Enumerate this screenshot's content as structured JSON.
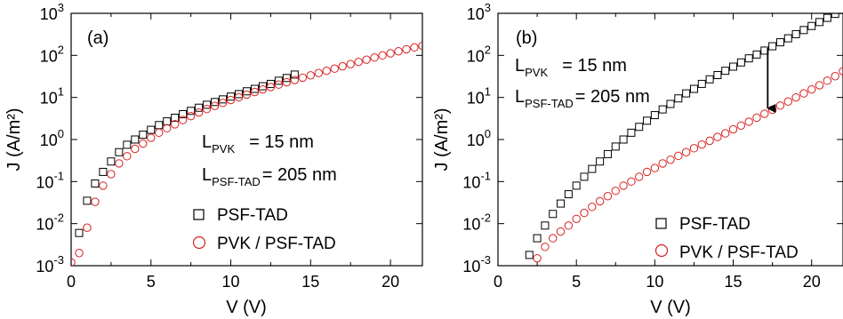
{
  "chart_data": [
    {
      "type": "scatter",
      "panel_label": "(a)",
      "xlabel": "V (V)",
      "ylabel": "J (A/m²)",
      "xlim": [
        0,
        22
      ],
      "ylim": [
        0.001,
        1000
      ],
      "y_scale": "log",
      "x_ticks": [
        "0",
        "5",
        "10",
        "15",
        "20"
      ],
      "y_ticks": [
        {
          "base": "10",
          "exp": "-3"
        },
        {
          "base": "10",
          "exp": "-2"
        },
        {
          "base": "10",
          "exp": "-1"
        },
        {
          "base": "10",
          "exp": "0"
        },
        {
          "base": "10",
          "exp": "1"
        },
        {
          "base": "10",
          "exp": "2"
        },
        {
          "base": "10",
          "exp": "3"
        }
      ],
      "grid": false,
      "legend_position": "lower-right",
      "annotations": [
        {
          "main": "L",
          "sub": "PVK",
          "rest": "= 15   nm"
        },
        {
          "main": "L",
          "sub": "PSF-TAD",
          "rest": "= 205 nm"
        }
      ],
      "series": [
        {
          "name": "PSF-TAD",
          "marker": "square",
          "color": "#000000",
          "x": [
            0.5,
            1.0,
            1.5,
            2.0,
            2.5,
            3.0,
            3.5,
            4.0,
            4.5,
            5.0,
            5.5,
            6.0,
            6.5,
            7.0,
            7.5,
            8.0,
            8.5,
            9.0,
            9.5,
            10.0,
            10.5,
            11.0,
            11.5,
            12.0,
            12.5,
            13.0,
            13.5,
            14.0
          ],
          "y": [
            0.006,
            0.035,
            0.09,
            0.17,
            0.3,
            0.5,
            0.75,
            1.0,
            1.3,
            1.7,
            2.2,
            2.7,
            3.3,
            4.0,
            4.8,
            5.7,
            6.7,
            7.8,
            9.0,
            10.5,
            12.0,
            14.0,
            16.0,
            18.5,
            21.0,
            25.0,
            29.0,
            35.0
          ]
        },
        {
          "name": "PVK / PSF-TAD",
          "marker": "circle",
          "color": "#d62020",
          "x": [
            0.0,
            0.5,
            1.0,
            1.5,
            2.0,
            2.5,
            3.0,
            3.5,
            4.0,
            4.5,
            5.0,
            5.5,
            6.0,
            6.5,
            7.0,
            7.5,
            8.0,
            8.5,
            9.0,
            9.5,
            10.0,
            10.5,
            11.0,
            11.5,
            12.0,
            12.5,
            13.0,
            13.5,
            14.0,
            14.5,
            15.0,
            15.5,
            16.0,
            16.5,
            17.0,
            17.5,
            18.0,
            18.5,
            19.0,
            19.5,
            20.0,
            20.5,
            21.0,
            21.5,
            22.0
          ],
          "y": [
            0.0012,
            0.002,
            0.008,
            0.033,
            0.08,
            0.15,
            0.27,
            0.4,
            0.6,
            0.8,
            1.1,
            1.45,
            1.85,
            2.3,
            2.9,
            3.6,
            4.4,
            5.3,
            6.3,
            7.4,
            8.7,
            10.1,
            11.7,
            13.5,
            15.5,
            17.7,
            20.2,
            23.0,
            26.0,
            29.5,
            33.5,
            38.0,
            43.0,
            48.5,
            55.0,
            62.0,
            70.0,
            79.0,
            89.0,
            100.0,
            112.0,
            125.0,
            140.0,
            155.0,
            170.0
          ]
        }
      ]
    },
    {
      "type": "scatter",
      "panel_label": "(b)",
      "xlabel": "V (V)",
      "ylabel": "J (A/m²)",
      "xlim": [
        0,
        22
      ],
      "ylim": [
        0.001,
        1000
      ],
      "y_scale": "log",
      "x_ticks": [
        "0",
        "5",
        "10",
        "15",
        "20"
      ],
      "y_ticks": [
        {
          "base": "10",
          "exp": "-3"
        },
        {
          "base": "10",
          "exp": "-2"
        },
        {
          "base": "10",
          "exp": "-1"
        },
        {
          "base": "10",
          "exp": "0"
        },
        {
          "base": "10",
          "exp": "1"
        },
        {
          "base": "10",
          "exp": "2"
        },
        {
          "base": "10",
          "exp": "3"
        }
      ],
      "grid": false,
      "legend_position": "lower-right",
      "annotations": [
        {
          "main": "L",
          "sub": "PVK",
          "rest": "= 15   nm"
        },
        {
          "main": "L",
          "sub": "PSF-TAD",
          "rest": "= 205 nm"
        }
      ],
      "arrow": {
        "x": 17.2,
        "y_from": 150,
        "y_to": 5.5
      },
      "series": [
        {
          "name": "PSF-TAD",
          "marker": "square",
          "color": "#000000",
          "x": [
            2.0,
            2.5,
            3.0,
            3.5,
            4.0,
            4.5,
            5.0,
            5.5,
            6.0,
            6.5,
            7.0,
            7.5,
            8.0,
            8.5,
            9.0,
            9.5,
            10.0,
            10.5,
            11.0,
            11.5,
            12.0,
            12.5,
            13.0,
            13.5,
            14.0,
            14.5,
            15.0,
            15.5,
            16.0,
            16.5,
            17.0,
            17.5,
            18.0,
            18.5,
            19.0,
            19.5,
            20.0,
            20.5,
            21.0,
            21.5,
            22.0
          ],
          "y": [
            0.0018,
            0.0045,
            0.009,
            0.017,
            0.03,
            0.05,
            0.08,
            0.13,
            0.2,
            0.3,
            0.45,
            0.68,
            1.0,
            1.45,
            2.0,
            2.8,
            3.8,
            5.2,
            7.0,
            9.5,
            12.5,
            16.0,
            21.0,
            27.0,
            34.0,
            43.0,
            54.0,
            68.0,
            85.0,
            105.0,
            130.0,
            165.0,
            205.0,
            255.0,
            320.0,
            400.0,
            500.0,
            620.0,
            780.0,
            970.0,
            1200.0
          ]
        },
        {
          "name": "PVK / PSF-TAD",
          "marker": "circle",
          "color": "#d62020",
          "x": [
            2.5,
            3.0,
            3.5,
            4.0,
            4.5,
            5.0,
            5.5,
            6.0,
            6.5,
            7.0,
            7.5,
            8.0,
            8.5,
            9.0,
            9.5,
            10.0,
            10.5,
            11.0,
            11.5,
            12.0,
            12.5,
            13.0,
            13.5,
            14.0,
            14.5,
            15.0,
            15.5,
            16.0,
            16.5,
            17.0,
            17.5,
            18.0,
            18.5,
            19.0,
            19.5,
            20.0,
            20.5,
            21.0,
            21.5,
            22.0
          ],
          "y": [
            0.0015,
            0.0028,
            0.0045,
            0.0065,
            0.009,
            0.013,
            0.018,
            0.025,
            0.034,
            0.045,
            0.06,
            0.08,
            0.1,
            0.13,
            0.17,
            0.21,
            0.27,
            0.33,
            0.41,
            0.5,
            0.62,
            0.76,
            0.93,
            1.15,
            1.4,
            1.75,
            2.15,
            2.65,
            3.3,
            4.1,
            5.1,
            6.4,
            8.0,
            10.0,
            12.5,
            15.5,
            19.5,
            25.0,
            32.0,
            42.0
          ]
        }
      ]
    }
  ]
}
